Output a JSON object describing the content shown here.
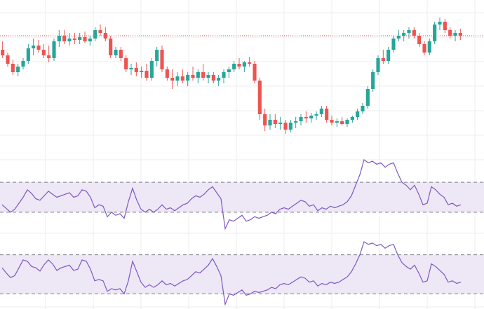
{
  "chart_data": [
    {
      "type": "candlestick",
      "title": "",
      "grid": true,
      "last_price_line": true,
      "colors": {
        "up": "#26a69a",
        "down": "#ef5350",
        "last_price_line": "#ef5350",
        "grid": "#eeeeee"
      },
      "ylim": [
        0,
        100
      ],
      "candles": [
        {
          "o": 72,
          "h": 78,
          "l": 66,
          "c": 68
        },
        {
          "o": 68,
          "h": 70,
          "l": 60,
          "c": 62
        },
        {
          "o": 62,
          "h": 65,
          "l": 54,
          "c": 56
        },
        {
          "o": 56,
          "h": 62,
          "l": 53,
          "c": 60
        },
        {
          "o": 60,
          "h": 66,
          "l": 58,
          "c": 64
        },
        {
          "o": 64,
          "h": 76,
          "l": 62,
          "c": 73
        },
        {
          "o": 73,
          "h": 80,
          "l": 68,
          "c": 75
        },
        {
          "o": 75,
          "h": 79,
          "l": 70,
          "c": 72
        },
        {
          "o": 72,
          "h": 76,
          "l": 66,
          "c": 68
        },
        {
          "o": 68,
          "h": 75,
          "l": 63,
          "c": 66
        },
        {
          "o": 66,
          "h": 80,
          "l": 64,
          "c": 78
        },
        {
          "o": 78,
          "h": 86,
          "l": 74,
          "c": 82
        },
        {
          "o": 82,
          "h": 86,
          "l": 76,
          "c": 78
        },
        {
          "o": 78,
          "h": 84,
          "l": 75,
          "c": 80
        },
        {
          "o": 80,
          "h": 84,
          "l": 76,
          "c": 79
        },
        {
          "o": 79,
          "h": 84,
          "l": 76,
          "c": 81
        },
        {
          "o": 81,
          "h": 85,
          "l": 77,
          "c": 78
        },
        {
          "o": 78,
          "h": 82,
          "l": 75,
          "c": 80
        },
        {
          "o": 80,
          "h": 88,
          "l": 78,
          "c": 86
        },
        {
          "o": 86,
          "h": 90,
          "l": 82,
          "c": 84
        },
        {
          "o": 84,
          "h": 88,
          "l": 78,
          "c": 80
        },
        {
          "o": 80,
          "h": 82,
          "l": 66,
          "c": 68
        },
        {
          "o": 68,
          "h": 74,
          "l": 66,
          "c": 72
        },
        {
          "o": 72,
          "h": 74,
          "l": 64,
          "c": 66
        },
        {
          "o": 66,
          "h": 68,
          "l": 56,
          "c": 58
        },
        {
          "o": 58,
          "h": 62,
          "l": 54,
          "c": 59
        },
        {
          "o": 59,
          "h": 63,
          "l": 53,
          "c": 56
        },
        {
          "o": 56,
          "h": 60,
          "l": 52,
          "c": 57
        },
        {
          "o": 57,
          "h": 62,
          "l": 50,
          "c": 52
        },
        {
          "o": 52,
          "h": 66,
          "l": 50,
          "c": 64
        },
        {
          "o": 64,
          "h": 74,
          "l": 60,
          "c": 72
        },
        {
          "o": 72,
          "h": 75,
          "l": 56,
          "c": 58
        },
        {
          "o": 58,
          "h": 60,
          "l": 50,
          "c": 52
        },
        {
          "o": 52,
          "h": 58,
          "l": 44,
          "c": 50
        },
        {
          "o": 50,
          "h": 56,
          "l": 46,
          "c": 53
        },
        {
          "o": 53,
          "h": 58,
          "l": 48,
          "c": 50
        },
        {
          "o": 50,
          "h": 56,
          "l": 46,
          "c": 54
        },
        {
          "o": 54,
          "h": 60,
          "l": 50,
          "c": 52
        },
        {
          "o": 52,
          "h": 58,
          "l": 48,
          "c": 56
        },
        {
          "o": 56,
          "h": 62,
          "l": 50,
          "c": 52
        },
        {
          "o": 52,
          "h": 56,
          "l": 48,
          "c": 54
        },
        {
          "o": 54,
          "h": 56,
          "l": 48,
          "c": 50
        },
        {
          "o": 50,
          "h": 54,
          "l": 46,
          "c": 52
        },
        {
          "o": 52,
          "h": 58,
          "l": 48,
          "c": 56
        },
        {
          "o": 56,
          "h": 60,
          "l": 52,
          "c": 58
        },
        {
          "o": 58,
          "h": 64,
          "l": 56,
          "c": 62
        },
        {
          "o": 62,
          "h": 66,
          "l": 58,
          "c": 60
        },
        {
          "o": 60,
          "h": 64,
          "l": 56,
          "c": 63
        },
        {
          "o": 63,
          "h": 67,
          "l": 60,
          "c": 62
        },
        {
          "o": 62,
          "h": 64,
          "l": 48,
          "c": 50
        },
        {
          "o": 50,
          "h": 52,
          "l": 22,
          "c": 26
        },
        {
          "o": 26,
          "h": 30,
          "l": 14,
          "c": 18
        },
        {
          "o": 18,
          "h": 26,
          "l": 15,
          "c": 22
        },
        {
          "o": 22,
          "h": 26,
          "l": 16,
          "c": 19
        },
        {
          "o": 19,
          "h": 24,
          "l": 15,
          "c": 20
        },
        {
          "o": 20,
          "h": 22,
          "l": 12,
          "c": 15
        },
        {
          "o": 15,
          "h": 22,
          "l": 13,
          "c": 20
        },
        {
          "o": 20,
          "h": 24,
          "l": 16,
          "c": 21
        },
        {
          "o": 21,
          "h": 26,
          "l": 18,
          "c": 24
        },
        {
          "o": 24,
          "h": 28,
          "l": 20,
          "c": 23
        },
        {
          "o": 23,
          "h": 27,
          "l": 20,
          "c": 25
        },
        {
          "o": 25,
          "h": 28,
          "l": 22,
          "c": 26
        },
        {
          "o": 26,
          "h": 32,
          "l": 24,
          "c": 30
        },
        {
          "o": 30,
          "h": 32,
          "l": 20,
          "c": 22
        },
        {
          "o": 22,
          "h": 25,
          "l": 18,
          "c": 20
        },
        {
          "o": 20,
          "h": 23,
          "l": 17,
          "c": 21
        },
        {
          "o": 21,
          "h": 24,
          "l": 18,
          "c": 19
        },
        {
          "o": 19,
          "h": 23,
          "l": 17,
          "c": 22
        },
        {
          "o": 22,
          "h": 25,
          "l": 20,
          "c": 24
        },
        {
          "o": 24,
          "h": 30,
          "l": 22,
          "c": 28
        },
        {
          "o": 28,
          "h": 34,
          "l": 26,
          "c": 32
        },
        {
          "o": 32,
          "h": 46,
          "l": 30,
          "c": 44
        },
        {
          "o": 44,
          "h": 58,
          "l": 42,
          "c": 56
        },
        {
          "o": 56,
          "h": 68,
          "l": 54,
          "c": 66
        },
        {
          "o": 66,
          "h": 72,
          "l": 62,
          "c": 64
        },
        {
          "o": 64,
          "h": 74,
          "l": 62,
          "c": 72
        },
        {
          "o": 72,
          "h": 82,
          "l": 70,
          "c": 80
        },
        {
          "o": 80,
          "h": 86,
          "l": 78,
          "c": 82
        },
        {
          "o": 82,
          "h": 86,
          "l": 78,
          "c": 84
        },
        {
          "o": 84,
          "h": 88,
          "l": 80,
          "c": 86
        },
        {
          "o": 86,
          "h": 88,
          "l": 80,
          "c": 82
        },
        {
          "o": 82,
          "h": 84,
          "l": 74,
          "c": 76
        },
        {
          "o": 76,
          "h": 78,
          "l": 68,
          "c": 70
        },
        {
          "o": 70,
          "h": 80,
          "l": 68,
          "c": 78
        },
        {
          "o": 78,
          "h": 92,
          "l": 76,
          "c": 90
        },
        {
          "o": 90,
          "h": 95,
          "l": 86,
          "c": 92
        },
        {
          "o": 92,
          "h": 94,
          "l": 84,
          "c": 86
        },
        {
          "o": 86,
          "h": 88,
          "l": 80,
          "c": 82
        },
        {
          "o": 82,
          "h": 86,
          "l": 78,
          "c": 84
        },
        {
          "o": 84,
          "h": 87,
          "l": 79,
          "c": 82
        }
      ]
    },
    {
      "type": "line",
      "title": "",
      "ylim": [
        0,
        100
      ],
      "band": [
        30,
        70
      ],
      "colors": {
        "line": "#7e57c2",
        "band_fill": "#ede7f6",
        "band_border": "#787b86"
      },
      "series": [
        {
          "values": [
            40,
            35,
            30,
            34,
            42,
            50,
            60,
            55,
            48,
            46,
            52,
            58,
            54,
            50,
            52,
            54,
            56,
            50,
            52,
            60,
            58,
            50,
            36,
            40,
            38,
            24,
            30,
            26,
            28,
            22,
            44,
            62,
            46,
            34,
            30,
            34,
            30,
            34,
            40,
            34,
            36,
            32,
            36,
            40,
            42,
            48,
            52,
            50,
            54,
            60,
            64,
            56,
            48,
            8,
            20,
            18,
            22,
            26,
            18,
            20,
            24,
            22,
            24,
            26,
            30,
            28,
            34,
            36,
            34,
            38,
            42,
            46,
            44,
            38,
            40,
            32,
            36,
            34,
            38,
            36,
            38,
            40,
            44,
            52,
            66,
            80,
            100,
            96,
            98,
            94,
            96,
            90,
            94,
            96,
            82,
            70,
            66,
            60,
            66,
            54,
            40,
            42,
            64,
            60,
            54,
            50,
            40,
            42,
            38,
            40
          ]
        }
      ]
    },
    {
      "type": "line",
      "title": "",
      "ylim": [
        0,
        100
      ],
      "band": [
        20,
        80
      ],
      "colors": {
        "line": "#7e57c2",
        "band_fill": "#ede7f6",
        "band_border": "#787b86"
      },
      "series": [
        {
          "values": [
            60,
            52,
            45,
            48,
            60,
            72,
            70,
            62,
            60,
            55,
            65,
            72,
            66,
            56,
            60,
            62,
            64,
            56,
            58,
            72,
            70,
            58,
            40,
            42,
            40,
            24,
            28,
            26,
            28,
            20,
            40,
            70,
            54,
            38,
            30,
            34,
            30,
            34,
            40,
            34,
            36,
            32,
            36,
            40,
            42,
            48,
            54,
            52,
            58,
            64,
            74,
            62,
            48,
            4,
            20,
            18,
            22,
            26,
            18,
            20,
            24,
            22,
            24,
            26,
            30,
            28,
            34,
            36,
            34,
            38,
            42,
            46,
            44,
            38,
            40,
            32,
            36,
            34,
            38,
            36,
            38,
            42,
            46,
            54,
            66,
            80,
            100,
            96,
            98,
            94,
            96,
            90,
            94,
            96,
            80,
            68,
            62,
            58,
            64,
            52,
            38,
            40,
            66,
            62,
            56,
            50,
            38,
            40,
            36,
            38
          ]
        }
      ]
    }
  ]
}
